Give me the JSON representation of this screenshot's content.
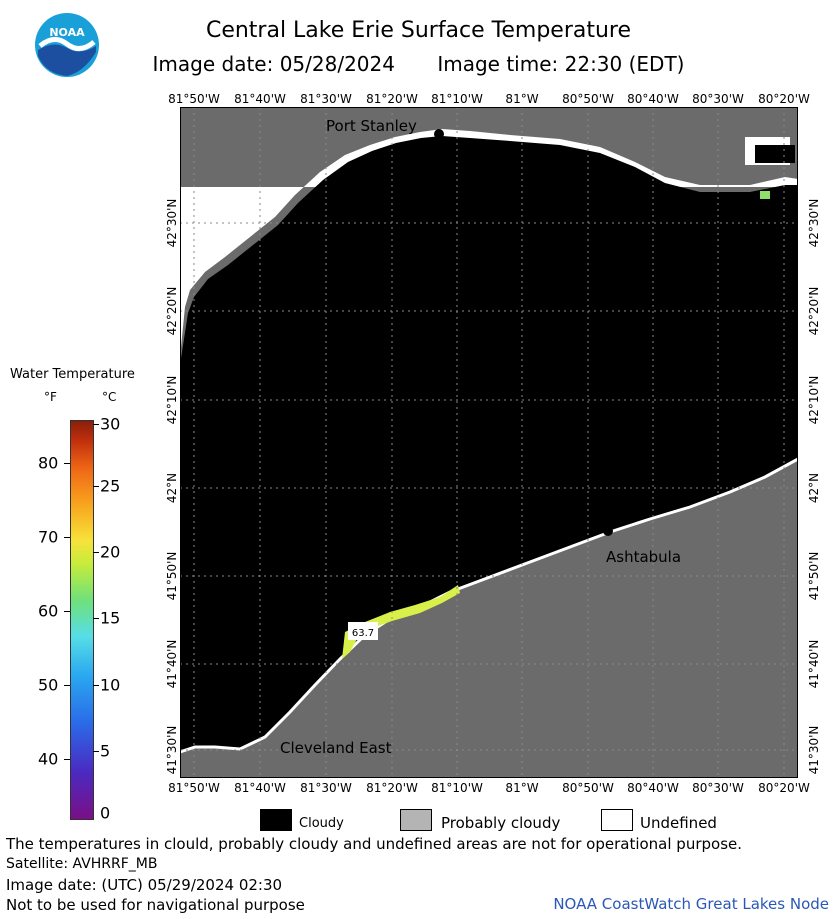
{
  "header": {
    "title": "Central Lake Erie Surface Temperature",
    "image_date_label": "Image date: 05/28/2024",
    "image_time_label": "Image time: 22:30 (EDT)"
  },
  "logo": {
    "text": "NOAA",
    "icon": "noaa-logo"
  },
  "axes": {
    "longitude_ticks": [
      "81°50'W",
      "81°40'W",
      "81°30'W",
      "81°20'W",
      "81°10'W",
      "81°W",
      "80°50'W",
      "80°40'W",
      "80°30'W",
      "80°20'W"
    ],
    "latitude_ticks": [
      "42°30'N",
      "42°20'N",
      "42°10'N",
      "42°N",
      "41°50'N",
      "41°40'N",
      "41°30'N"
    ]
  },
  "map": {
    "places": [
      {
        "name": "Port Stanley"
      },
      {
        "name": "Ashtabula"
      },
      {
        "name": "Cleveland East"
      }
    ],
    "reading": "63.7",
    "colors": {
      "cloudy": "#000000",
      "land": "#6b6b6b",
      "undefined": "#ffffff",
      "warm_water": "#d9ef4a",
      "mild_water": "#8fe06a"
    }
  },
  "colorbar": {
    "title": "Water Temperature",
    "unit_f": "°F",
    "unit_c": "°C",
    "fahrenheit_ticks": [
      "80",
      "70",
      "60",
      "50",
      "40"
    ],
    "celsius_ticks": [
      "30",
      "25",
      "20",
      "15",
      "10",
      "5",
      "0"
    ]
  },
  "legend": {
    "items": [
      {
        "label": "Cloudy",
        "color": "#000000"
      },
      {
        "label": "Probably cloudy",
        "color": "#b4b4b4"
      },
      {
        "label": "Undefined",
        "color": "#ffffff"
      }
    ]
  },
  "footer": {
    "note": "The temperatures in clould, probably cloudy and undefined areas are not for operational purpose.",
    "satellite": "Satellite: AVHRRF_MB",
    "utc_date": "Image date: (UTC) 05/29/2024  02:30",
    "nav_note": "Not to be used for navigational purpose",
    "node": "NOAA CoastWatch Great Lakes Node"
  }
}
